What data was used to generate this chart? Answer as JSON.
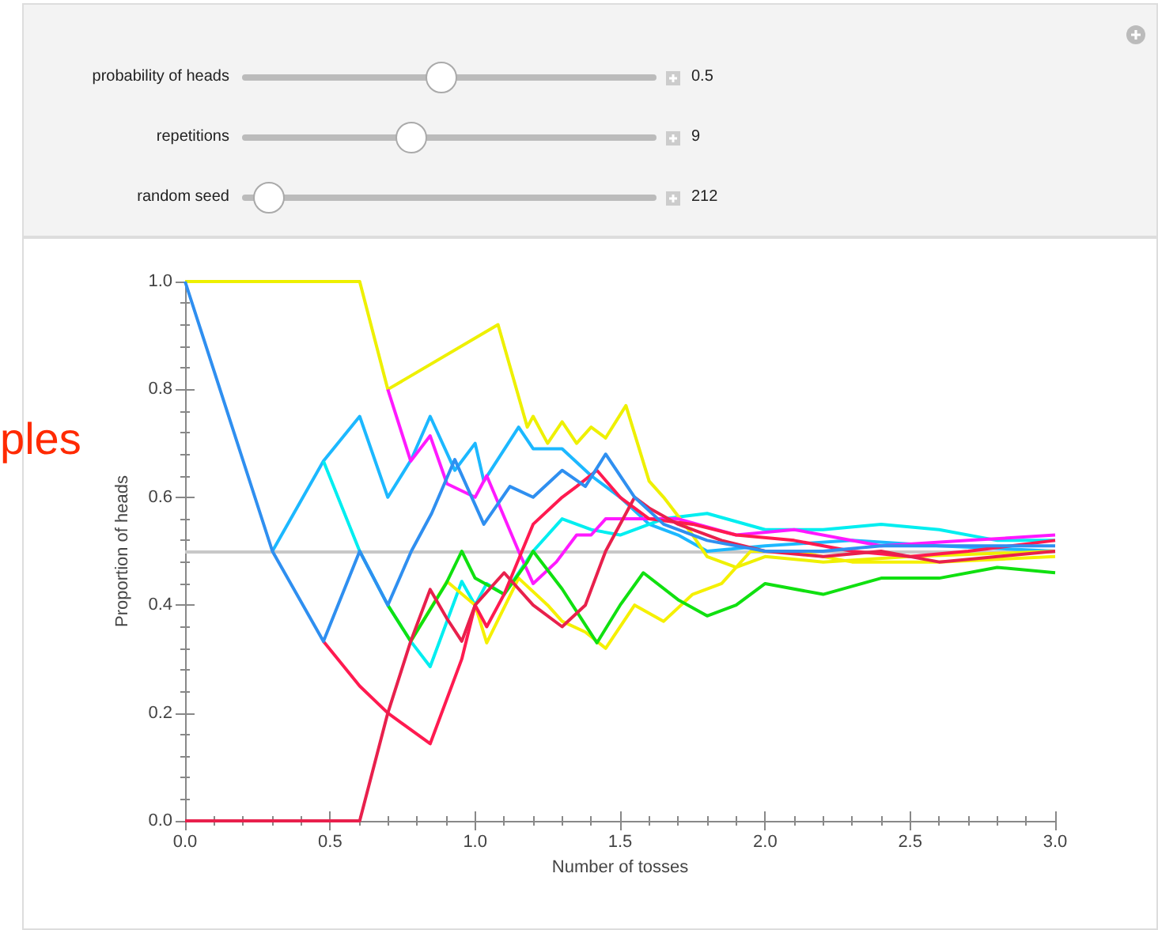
{
  "chart_data": {
    "type": "line",
    "xlabel": "Number of tosses",
    "ylabel": "Proportion of heads",
    "xlim": [
      0,
      3
    ],
    "xticks": [
      {
        "value": 0,
        "label": "0.0"
      },
      0.5,
      {
        "value": 1,
        "label": "1.0"
      },
      1.5,
      {
        "value": 2,
        "label": "2.0"
      },
      2.5,
      {
        "value": 3,
        "label": "3.0"
      }
    ],
    "ylim": [
      0,
      1
    ],
    "yticks": [
      {
        "value": 0,
        "label": "0.0"
      },
      0.2,
      0.4,
      0.6,
      0.8,
      {
        "value": 1,
        "label": "1.0"
      }
    ],
    "grid": false,
    "marker": "none",
    "line_style": "solid",
    "ref_lines": [
      {
        "axis": "y",
        "value": 0.5,
        "color": "#c8c8c8"
      }
    ],
    "annotations": [
      "probability of heads",
      "0.5",
      "repetitions",
      "9",
      "random seed",
      "212",
      "ples"
    ],
    "series": [
      {
        "color": "#1cb8ff",
        "x": [
          0.301,
          0.477,
          0.602,
          0.699,
          0.78,
          0.845,
          0.93,
          1.0,
          1.03,
          1.15,
          1.2,
          1.3,
          1.4,
          1.5,
          1.6,
          1.7,
          1.8,
          2.0,
          2.3,
          2.6,
          3.0
        ],
        "values": [
          0.5,
          0.667,
          0.75,
          0.6,
          0.67,
          0.75,
          0.65,
          0.7,
          0.63,
          0.73,
          0.69,
          0.69,
          0.64,
          0.6,
          0.55,
          0.53,
          0.5,
          0.51,
          0.52,
          0.51,
          0.5
        ]
      },
      {
        "color": "#00eef0",
        "x": [
          0.477,
          0.602,
          0.699,
          0.778,
          0.845,
          0.954,
          1.0,
          1.04,
          1.1,
          1.2,
          1.3,
          1.4,
          1.5,
          1.65,
          1.8,
          2.0,
          2.2,
          2.4,
          2.6,
          2.8,
          3.0
        ],
        "values": [
          0.667,
          0.5,
          0.4,
          0.333,
          0.286,
          0.444,
          0.4,
          0.44,
          0.42,
          0.5,
          0.56,
          0.54,
          0.53,
          0.56,
          0.57,
          0.54,
          0.54,
          0.55,
          0.54,
          0.52,
          0.52
        ]
      },
      {
        "color": "#eef000",
        "x": [
          0,
          0.602,
          0.699,
          1.079,
          1.18,
          1.2,
          1.25,
          1.3,
          1.35,
          1.4,
          1.45,
          1.52,
          1.6,
          1.65,
          1.75,
          1.8,
          1.9,
          2.0,
          2.2,
          2.5,
          3.0
        ],
        "values": [
          1,
          1,
          0.8,
          0.92,
          0.73,
          0.75,
          0.7,
          0.74,
          0.7,
          0.73,
          0.71,
          0.77,
          0.63,
          0.6,
          0.53,
          0.49,
          0.47,
          0.49,
          0.48,
          0.49,
          0.5
        ]
      },
      {
        "color": "#ff1aff",
        "x": [
          0.699,
          0.778,
          0.845,
          0.903,
          1.0,
          1.04,
          1.15,
          1.2,
          1.28,
          1.35,
          1.4,
          1.45,
          1.55,
          1.7,
          1.9,
          2.1,
          2.4,
          2.7,
          3.0
        ],
        "values": [
          0.8,
          0.667,
          0.714,
          0.625,
          0.6,
          0.64,
          0.5,
          0.44,
          0.48,
          0.53,
          0.53,
          0.56,
          0.56,
          0.56,
          0.53,
          0.54,
          0.51,
          0.52,
          0.53
        ]
      },
      {
        "color": "#f5f000",
        "x": [
          0.778,
          0.903,
          1.0,
          1.04,
          1.15,
          1.25,
          1.3,
          1.38,
          1.45,
          1.55,
          1.65,
          1.75,
          1.85,
          1.95,
          2.1,
          2.3,
          2.6,
          3.0
        ],
        "values": [
          0.333,
          0.444,
          0.4,
          0.33,
          0.45,
          0.4,
          0.37,
          0.35,
          0.32,
          0.4,
          0.37,
          0.42,
          0.44,
          0.5,
          0.5,
          0.48,
          0.48,
          0.49
        ]
      },
      {
        "color": "#10e010",
        "x": [
          0.699,
          0.778,
          0.9,
          0.954,
          1.0,
          1.1,
          1.18,
          1.2,
          1.3,
          1.42,
          1.5,
          1.58,
          1.7,
          1.8,
          1.9,
          2.0,
          2.2,
          2.4,
          2.6,
          2.8,
          3.0
        ],
        "values": [
          0.4,
          0.333,
          0.44,
          0.5,
          0.45,
          0.42,
          0.48,
          0.5,
          0.43,
          0.33,
          0.4,
          0.46,
          0.41,
          0.38,
          0.4,
          0.44,
          0.42,
          0.45,
          0.45,
          0.47,
          0.46
        ]
      },
      {
        "color": "#ff1a50",
        "x": [
          0.477,
          0.602,
          0.699,
          0.845,
          0.954,
          1.0,
          1.04,
          1.1,
          1.2,
          1.3,
          1.35,
          1.42,
          1.5,
          1.6,
          1.75,
          1.9,
          2.1,
          2.3,
          2.5,
          2.7,
          3.0
        ],
        "values": [
          0.333,
          0.25,
          0.2,
          0.143,
          0.3,
          0.4,
          0.36,
          0.42,
          0.55,
          0.6,
          0.62,
          0.65,
          0.6,
          0.56,
          0.55,
          0.53,
          0.52,
          0.5,
          0.49,
          0.5,
          0.52
        ]
      },
      {
        "color": "#e8204c",
        "x": [
          0,
          0.602,
          0.699,
          0.778,
          0.845,
          0.903,
          0.954,
          1.0,
          1.1,
          1.2,
          1.3,
          1.38,
          1.45,
          1.55,
          1.6,
          1.7,
          1.85,
          2.0,
          2.2,
          2.4,
          2.6,
          3.0
        ],
        "values": [
          0,
          0,
          0.2,
          0.333,
          0.429,
          0.375,
          0.333,
          0.4,
          0.46,
          0.4,
          0.36,
          0.4,
          0.5,
          0.6,
          0.58,
          0.55,
          0.52,
          0.5,
          0.49,
          0.5,
          0.48,
          0.5
        ]
      },
      {
        "color": "#2f8ff0",
        "x": [
          0,
          0.301,
          0.477,
          0.602,
          0.699,
          0.78,
          0.85,
          0.93,
          1.03,
          1.12,
          1.2,
          1.3,
          1.38,
          1.45,
          1.55,
          1.65,
          1.8,
          2.0,
          2.2,
          2.4,
          2.6,
          2.8,
          3.0
        ],
        "values": [
          1,
          0.5,
          0.333,
          0.5,
          0.4,
          0.5,
          0.57,
          0.67,
          0.55,
          0.62,
          0.6,
          0.65,
          0.62,
          0.68,
          0.6,
          0.55,
          0.52,
          0.5,
          0.5,
          0.51,
          0.51,
          0.51,
          0.51
        ]
      }
    ]
  }
}
